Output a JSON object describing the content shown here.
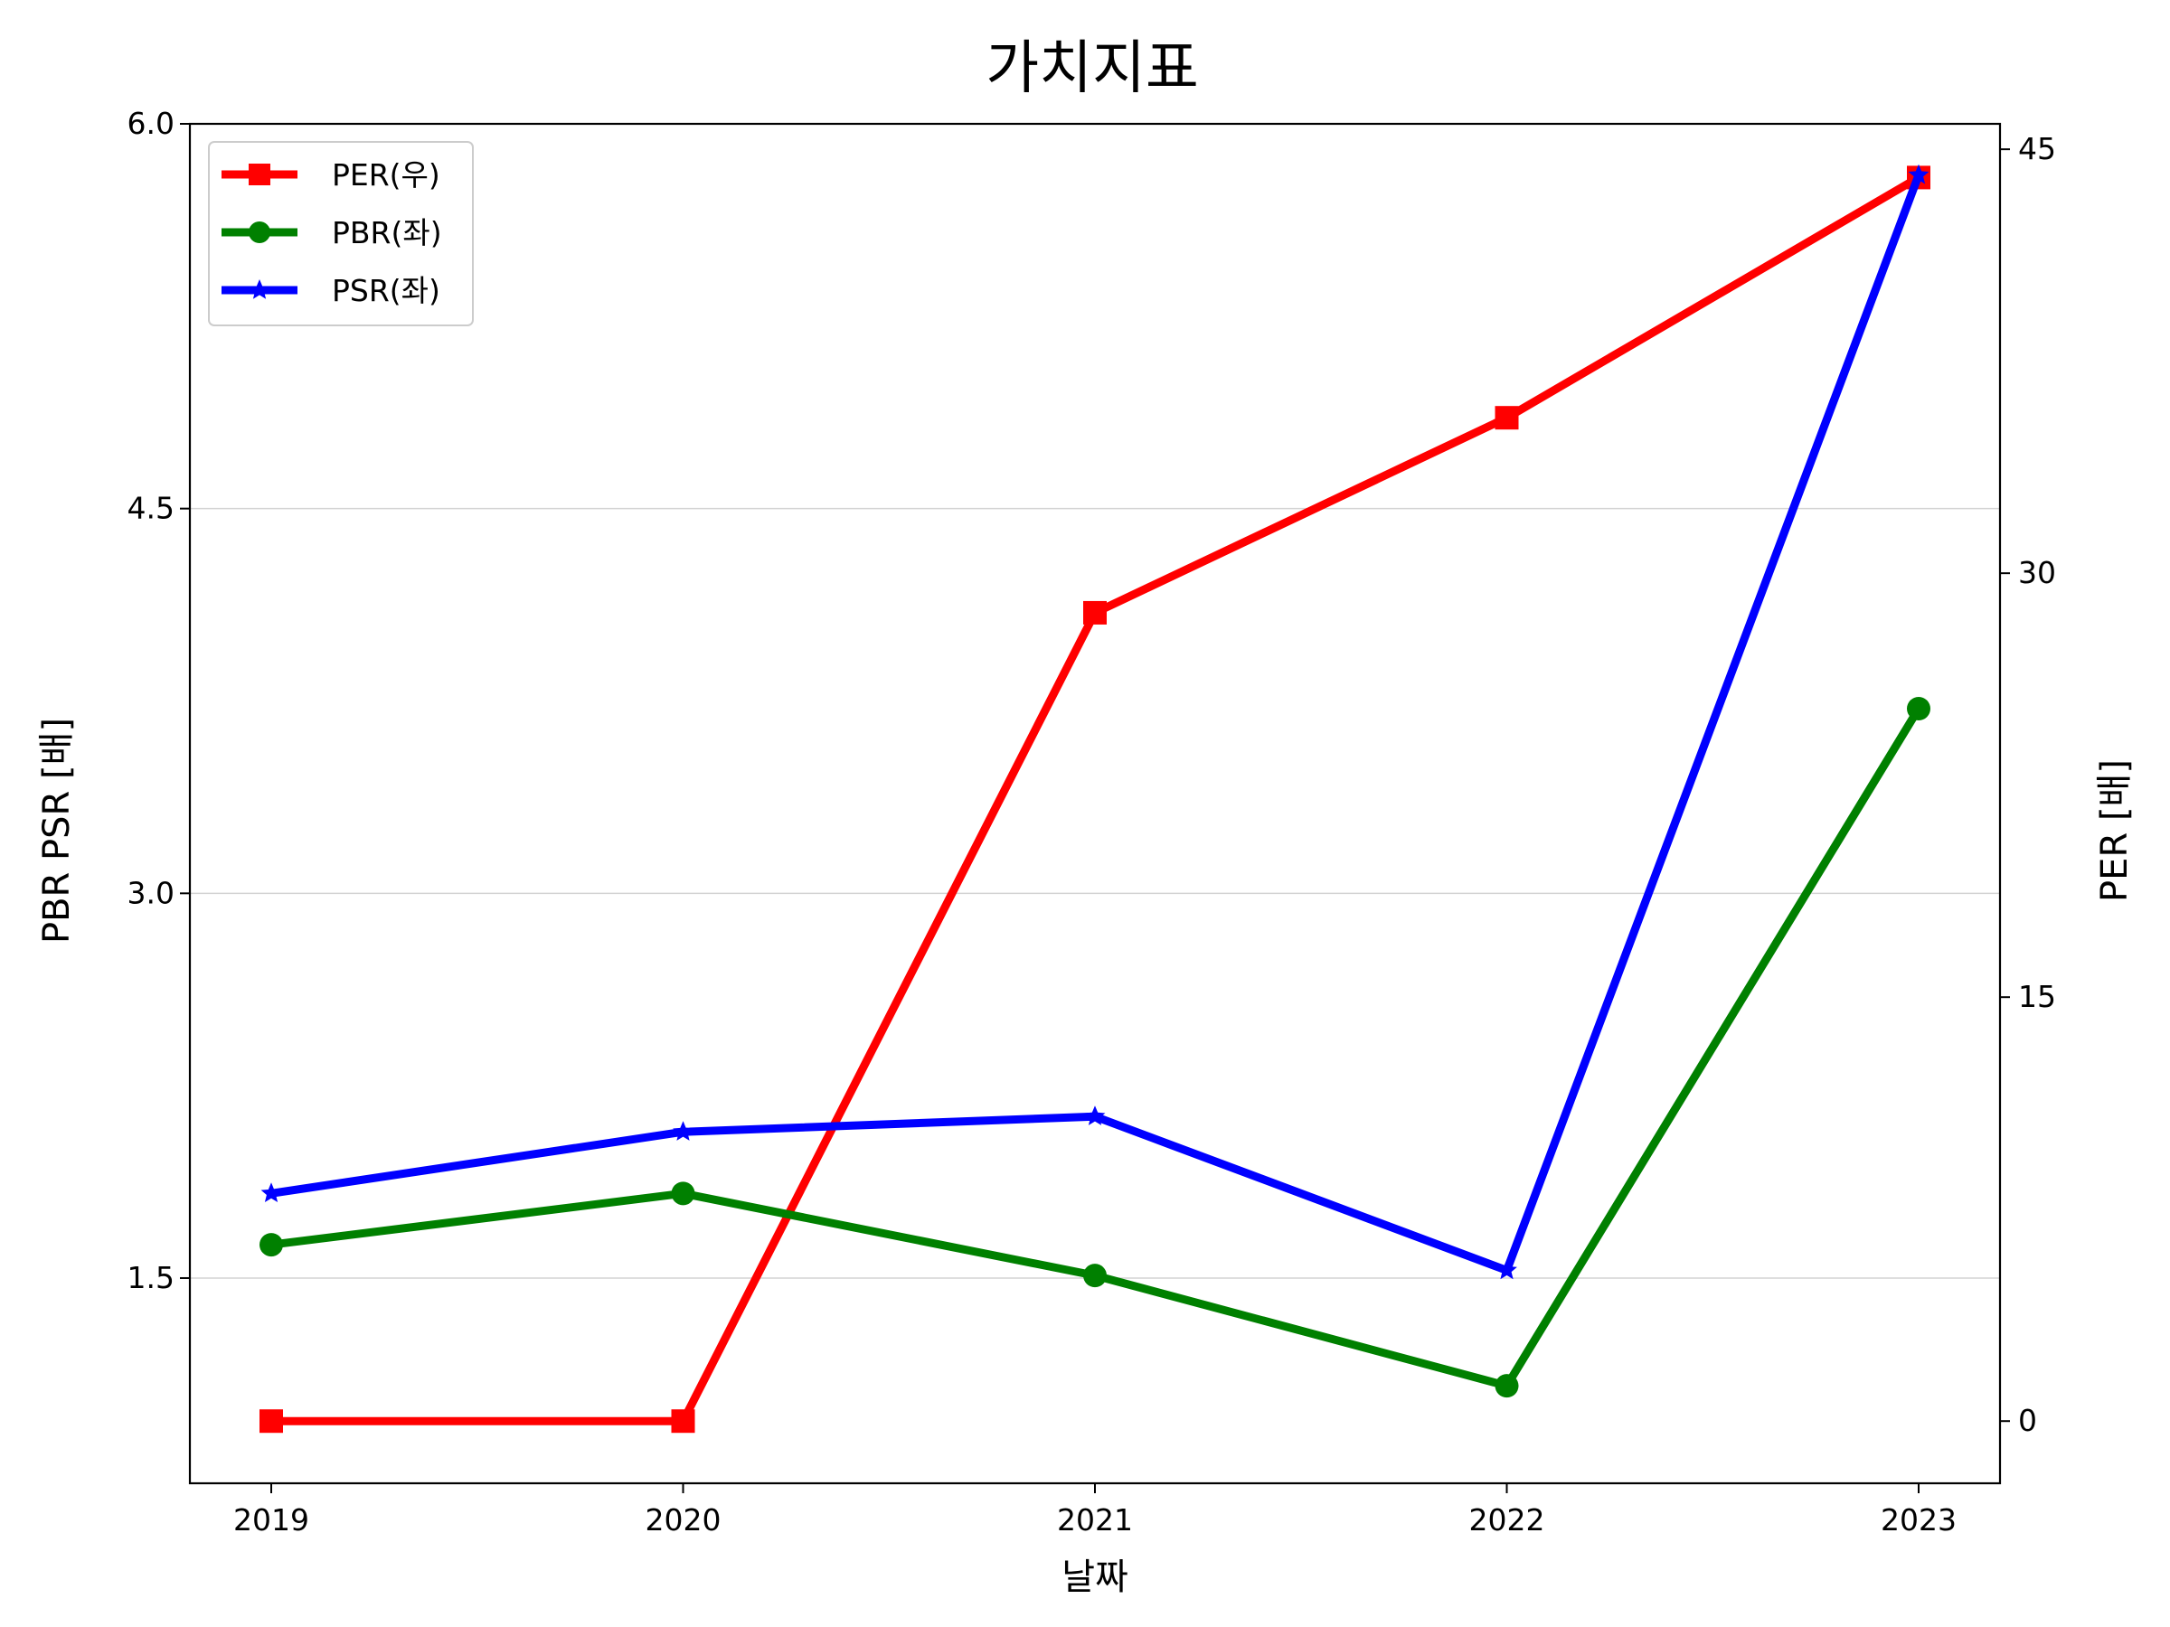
{
  "chart_data": {
    "type": "line",
    "title": "가치지표",
    "xlabel": "날짜",
    "ylabel_left": "PBR PSR [배]",
    "ylabel_right": "PER [배]",
    "categories": [
      "2019",
      "2020",
      "2021",
      "2022",
      "2023"
    ],
    "left_axis": {
      "ylim": [
        0.7,
        6.0
      ],
      "ticks": [
        1.5,
        3.0,
        4.5,
        6.0
      ],
      "tick_labels": [
        "1.5",
        "3.0",
        "4.5",
        "6.0"
      ],
      "color": "#008000"
    },
    "right_axis": {
      "ylim": [
        -2.2,
        45.9
      ],
      "ticks": [
        0,
        15,
        30,
        45
      ],
      "tick_labels": [
        "0",
        "15",
        "30",
        "45"
      ],
      "color": "#ff0000"
    },
    "grid": "horizontal",
    "legend_position": "top-left",
    "series": [
      {
        "name": "PER(우)",
        "axis": "right",
        "color": "#ff0000",
        "marker": "square",
        "values": [
          0.0,
          0.0,
          28.6,
          35.5,
          44.0
        ]
      },
      {
        "name": "PBR(좌)",
        "axis": "left",
        "color": "#008000",
        "marker": "circle",
        "values": [
          1.63,
          1.83,
          1.51,
          1.08,
          3.72
        ]
      },
      {
        "name": "PSR(좌)",
        "axis": "left",
        "color": "#0000ff",
        "marker": "star",
        "values": [
          1.83,
          2.07,
          2.13,
          1.53,
          5.8
        ]
      }
    ]
  }
}
